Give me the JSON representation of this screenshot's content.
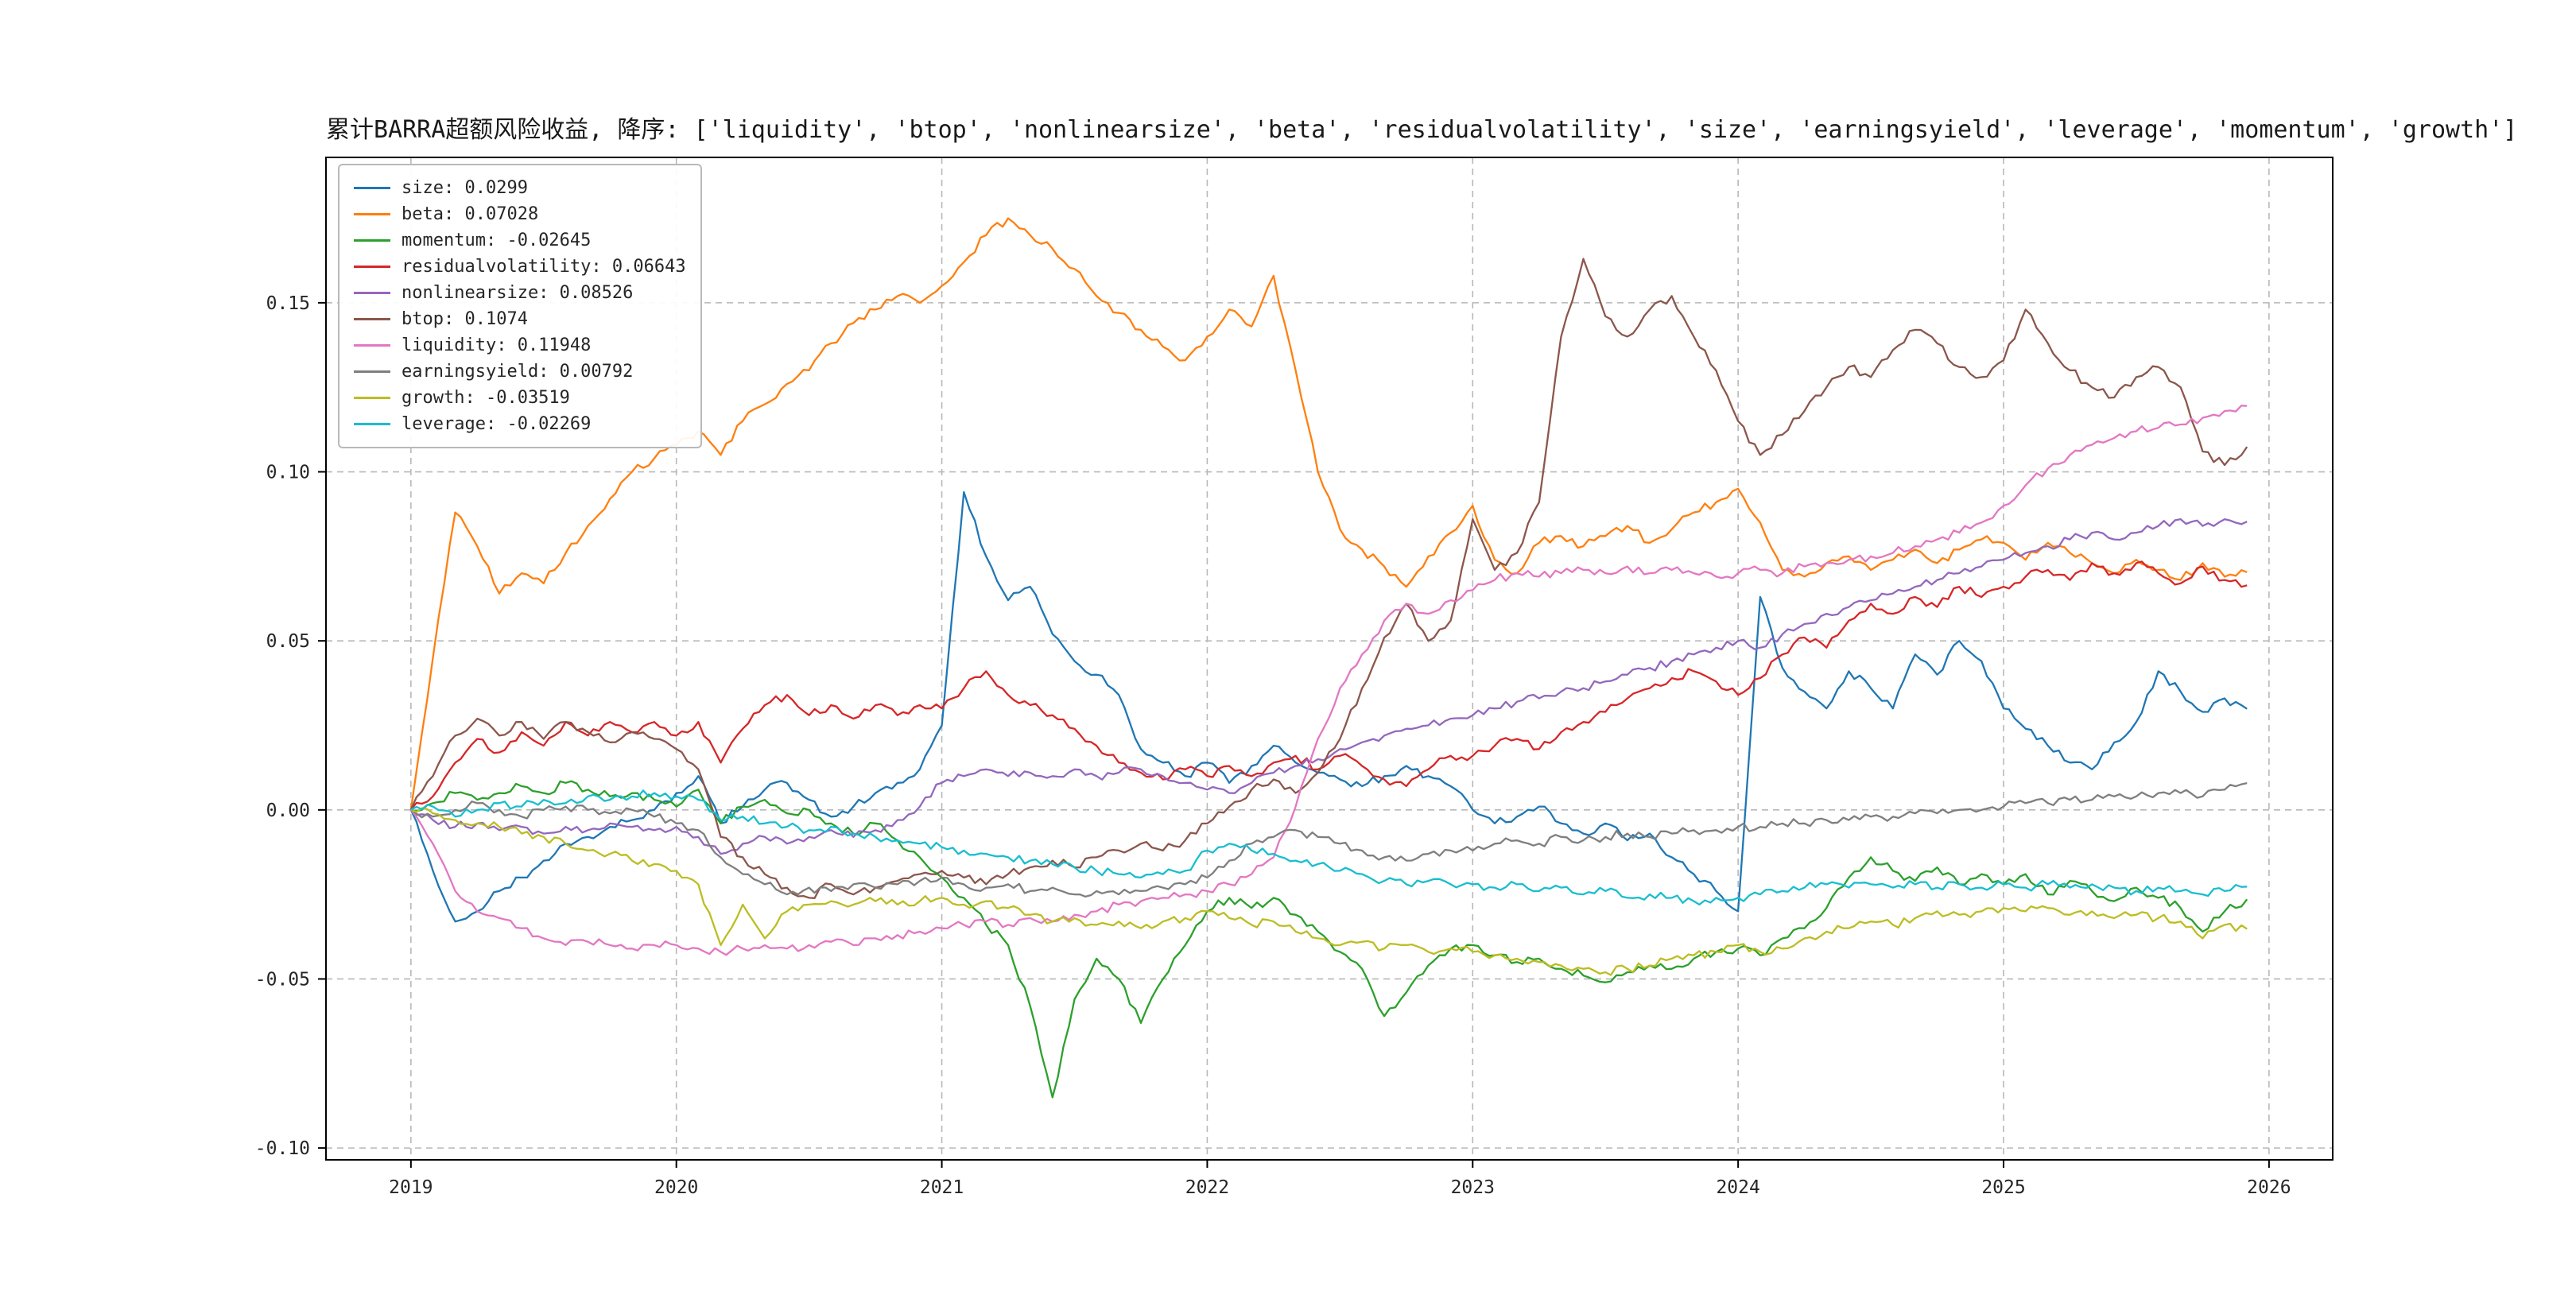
{
  "chart_data": {
    "type": "line",
    "title": "累计BARRA超额风险收益, 降序: ['liquidity', 'btop', 'nonlinearsize', 'beta', 'residualvolatility', 'size', 'earningsyield', 'leverage', 'momentum', 'growth']",
    "xlabel": "",
    "ylabel": "",
    "grid": true,
    "grid_style": "dashed",
    "legend_position": "upper left",
    "xlim": [
      2018.68,
      2026.24
    ],
    "ylim": [
      -0.1035,
      0.193
    ],
    "xticks": [
      2019,
      2020,
      2021,
      2022,
      2023,
      2024,
      2025,
      2026
    ],
    "xtick_labels": [
      "2019",
      "2020",
      "2021",
      "2022",
      "2023",
      "2024",
      "2025",
      "2026"
    ],
    "yticks": [
      -0.1,
      -0.05,
      0.0,
      0.05,
      0.1,
      0.15
    ],
    "ytick_labels": [
      "-0.10",
      "-0.05",
      "0.00",
      "0.05",
      "0.10",
      "0.15"
    ],
    "x": [
      2019.0,
      2019.083,
      2019.167,
      2019.25,
      2019.333,
      2019.417,
      2019.5,
      2019.583,
      2019.667,
      2019.75,
      2019.833,
      2019.917,
      2020.0,
      2020.083,
      2020.167,
      2020.25,
      2020.333,
      2020.417,
      2020.5,
      2020.583,
      2020.667,
      2020.75,
      2020.833,
      2020.917,
      2021.0,
      2021.083,
      2021.167,
      2021.25,
      2021.333,
      2021.417,
      2021.5,
      2021.583,
      2021.667,
      2021.75,
      2021.833,
      2021.917,
      2022.0,
      2022.083,
      2022.167,
      2022.25,
      2022.333,
      2022.417,
      2022.5,
      2022.583,
      2022.667,
      2022.75,
      2022.833,
      2022.917,
      2023.0,
      2023.083,
      2023.167,
      2023.25,
      2023.333,
      2023.417,
      2023.5,
      2023.583,
      2023.667,
      2023.75,
      2023.833,
      2023.917,
      2024.0,
      2024.083,
      2024.167,
      2024.25,
      2024.333,
      2024.417,
      2024.5,
      2024.583,
      2024.667,
      2024.75,
      2024.833,
      2024.917,
      2025.0,
      2025.083,
      2025.167,
      2025.25,
      2025.333,
      2025.417,
      2025.5,
      2025.583,
      2025.667,
      2025.75,
      2025.833,
      2025.917
    ],
    "series": [
      {
        "name": "size",
        "color": "#1f77b4",
        "label": "size: 0.0299",
        "final": 0.0299,
        "values": [
          0.0,
          -0.018,
          -0.033,
          -0.03,
          -0.024,
          -0.02,
          -0.015,
          -0.01,
          -0.008,
          -0.005,
          -0.003,
          0.0,
          0.005,
          0.01,
          -0.004,
          0.001,
          0.006,
          0.008,
          0.003,
          -0.002,
          0.001,
          0.005,
          0.008,
          0.012,
          0.025,
          0.094,
          0.075,
          0.062,
          0.066,
          0.052,
          0.044,
          0.04,
          0.034,
          0.018,
          0.014,
          0.01,
          0.014,
          0.008,
          0.013,
          0.019,
          0.014,
          0.011,
          0.009,
          0.007,
          0.01,
          0.013,
          0.01,
          0.007,
          0.0,
          -0.004,
          -0.002,
          0.001,
          -0.004,
          -0.007,
          -0.004,
          -0.009,
          -0.007,
          -0.014,
          -0.019,
          -0.024,
          -0.03,
          0.063,
          0.042,
          0.035,
          0.03,
          0.041,
          0.036,
          0.03,
          0.046,
          0.04,
          0.05,
          0.044,
          0.03,
          0.024,
          0.019,
          0.014,
          0.012,
          0.02,
          0.026,
          0.041,
          0.035,
          0.029,
          0.033,
          0.0299
        ]
      },
      {
        "name": "beta",
        "color": "#ff7f0e",
        "label": "beta: 0.07028",
        "final": 0.07028,
        "values": [
          0.0,
          0.045,
          0.088,
          0.078,
          0.064,
          0.07,
          0.067,
          0.076,
          0.084,
          0.092,
          0.1,
          0.104,
          0.108,
          0.112,
          0.105,
          0.115,
          0.12,
          0.126,
          0.13,
          0.138,
          0.144,
          0.148,
          0.152,
          0.15,
          0.155,
          0.162,
          0.17,
          0.175,
          0.17,
          0.166,
          0.16,
          0.152,
          0.147,
          0.142,
          0.137,
          0.133,
          0.14,
          0.148,
          0.143,
          0.158,
          0.13,
          0.1,
          0.083,
          0.077,
          0.072,
          0.066,
          0.075,
          0.082,
          0.09,
          0.074,
          0.07,
          0.079,
          0.081,
          0.078,
          0.081,
          0.084,
          0.079,
          0.083,
          0.088,
          0.091,
          0.095,
          0.085,
          0.071,
          0.069,
          0.073,
          0.075,
          0.071,
          0.074,
          0.077,
          0.073,
          0.077,
          0.08,
          0.079,
          0.074,
          0.079,
          0.076,
          0.073,
          0.07,
          0.074,
          0.071,
          0.068,
          0.073,
          0.069,
          0.0703
        ]
      },
      {
        "name": "momentum",
        "color": "#2ca02c",
        "label": "momentum: -0.02645",
        "final": -0.02645,
        "values": [
          0.0,
          0.002,
          0.005,
          0.003,
          0.005,
          0.007,
          0.005,
          0.008,
          0.006,
          0.004,
          0.005,
          0.003,
          0.001,
          0.006,
          -0.004,
          0.001,
          0.003,
          -0.001,
          0.0,
          -0.004,
          -0.007,
          -0.004,
          -0.009,
          -0.014,
          -0.02,
          -0.026,
          -0.034,
          -0.04,
          -0.058,
          -0.085,
          -0.056,
          -0.044,
          -0.05,
          -0.063,
          -0.05,
          -0.04,
          -0.03,
          -0.026,
          -0.029,
          -0.026,
          -0.031,
          -0.036,
          -0.042,
          -0.047,
          -0.061,
          -0.054,
          -0.046,
          -0.041,
          -0.04,
          -0.043,
          -0.045,
          -0.044,
          -0.047,
          -0.049,
          -0.051,
          -0.048,
          -0.046,
          -0.047,
          -0.044,
          -0.042,
          -0.041,
          -0.043,
          -0.038,
          -0.035,
          -0.029,
          -0.02,
          -0.014,
          -0.018,
          -0.021,
          -0.017,
          -0.022,
          -0.019,
          -0.022,
          -0.019,
          -0.025,
          -0.021,
          -0.024,
          -0.027,
          -0.023,
          -0.026,
          -0.029,
          -0.036,
          -0.03,
          -0.02645
        ]
      },
      {
        "name": "residualvolatility",
        "color": "#d62728",
        "label": "residualvolatility: 0.06643",
        "final": 0.06643,
        "values": [
          0.0,
          0.004,
          0.014,
          0.021,
          0.017,
          0.023,
          0.019,
          0.026,
          0.022,
          0.026,
          0.023,
          0.026,
          0.022,
          0.026,
          0.014,
          0.024,
          0.031,
          0.034,
          0.028,
          0.031,
          0.027,
          0.031,
          0.028,
          0.031,
          0.03,
          0.036,
          0.041,
          0.034,
          0.031,
          0.028,
          0.024,
          0.019,
          0.014,
          0.011,
          0.009,
          0.012,
          0.01,
          0.013,
          0.01,
          0.014,
          0.016,
          0.012,
          0.016,
          0.013,
          0.009,
          0.007,
          0.012,
          0.016,
          0.016,
          0.019,
          0.021,
          0.018,
          0.023,
          0.026,
          0.029,
          0.033,
          0.036,
          0.039,
          0.041,
          0.038,
          0.034,
          0.039,
          0.046,
          0.051,
          0.048,
          0.056,
          0.061,
          0.058,
          0.063,
          0.06,
          0.066,
          0.063,
          0.066,
          0.069,
          0.071,
          0.068,
          0.073,
          0.07,
          0.073,
          0.07,
          0.067,
          0.072,
          0.068,
          0.06643
        ]
      },
      {
        "name": "nonlinearsize",
        "color": "#9467bd",
        "label": "nonlinearsize: 0.08526",
        "final": 0.08526,
        "values": [
          0.0,
          -0.003,
          -0.005,
          -0.004,
          -0.006,
          -0.005,
          -0.007,
          -0.005,
          -0.006,
          -0.004,
          -0.005,
          -0.006,
          -0.005,
          -0.008,
          -0.013,
          -0.01,
          -0.008,
          -0.01,
          -0.008,
          -0.006,
          -0.008,
          -0.006,
          -0.003,
          0.001,
          0.008,
          0.01,
          0.012,
          0.01,
          0.011,
          0.01,
          0.012,
          0.01,
          0.011,
          0.012,
          0.01,
          0.008,
          0.006,
          0.005,
          0.008,
          0.011,
          0.013,
          0.015,
          0.018,
          0.02,
          0.022,
          0.024,
          0.025,
          0.027,
          0.028,
          0.03,
          0.032,
          0.033,
          0.035,
          0.036,
          0.038,
          0.04,
          0.042,
          0.044,
          0.046,
          0.048,
          0.05,
          0.048,
          0.052,
          0.055,
          0.058,
          0.06,
          0.062,
          0.064,
          0.066,
          0.068,
          0.07,
          0.072,
          0.074,
          0.076,
          0.078,
          0.08,
          0.082,
          0.08,
          0.082,
          0.084,
          0.086,
          0.084,
          0.086,
          0.08526
        ]
      },
      {
        "name": "btop",
        "color": "#8c564b",
        "label": "btop: 0.1074",
        "final": 0.1074,
        "values": [
          0.0,
          0.01,
          0.022,
          0.027,
          0.022,
          0.026,
          0.021,
          0.026,
          0.023,
          0.02,
          0.023,
          0.021,
          0.018,
          0.012,
          -0.008,
          -0.014,
          -0.019,
          -0.023,
          -0.026,
          -0.022,
          -0.025,
          -0.023,
          -0.021,
          -0.019,
          -0.018,
          -0.02,
          -0.022,
          -0.019,
          -0.017,
          -0.015,
          -0.017,
          -0.014,
          -0.012,
          -0.01,
          -0.012,
          -0.009,
          -0.004,
          0.001,
          0.006,
          0.009,
          0.005,
          0.011,
          0.021,
          0.036,
          0.051,
          0.061,
          0.05,
          0.056,
          0.086,
          0.071,
          0.076,
          0.091,
          0.14,
          0.163,
          0.146,
          0.14,
          0.148,
          0.152,
          0.14,
          0.13,
          0.115,
          0.105,
          0.111,
          0.118,
          0.125,
          0.131,
          0.128,
          0.136,
          0.142,
          0.138,
          0.131,
          0.128,
          0.133,
          0.148,
          0.138,
          0.13,
          0.125,
          0.122,
          0.128,
          0.131,
          0.125,
          0.106,
          0.102,
          0.1074
        ]
      },
      {
        "name": "liquidity",
        "color": "#e377c2",
        "label": "liquidity: 0.11948",
        "final": 0.11948,
        "values": [
          0.0,
          -0.01,
          -0.024,
          -0.03,
          -0.032,
          -0.035,
          -0.038,
          -0.04,
          -0.039,
          -0.04,
          -0.041,
          -0.04,
          -0.04,
          -0.041,
          -0.042,
          -0.041,
          -0.04,
          -0.041,
          -0.04,
          -0.039,
          -0.04,
          -0.038,
          -0.037,
          -0.036,
          -0.035,
          -0.034,
          -0.033,
          -0.034,
          -0.032,
          -0.033,
          -0.031,
          -0.03,
          -0.028,
          -0.027,
          -0.026,
          -0.025,
          -0.024,
          -0.022,
          -0.019,
          -0.014,
          0.001,
          0.021,
          0.036,
          0.046,
          0.056,
          0.061,
          0.058,
          0.062,
          0.065,
          0.068,
          0.07,
          0.069,
          0.07,
          0.071,
          0.07,
          0.072,
          0.07,
          0.071,
          0.07,
          0.069,
          0.07,
          0.071,
          0.07,
          0.072,
          0.073,
          0.074,
          0.075,
          0.076,
          0.078,
          0.08,
          0.082,
          0.085,
          0.09,
          0.096,
          0.101,
          0.105,
          0.108,
          0.11,
          0.112,
          0.113,
          0.114,
          0.116,
          0.118,
          0.11948
        ]
      },
      {
        "name": "earningsyield",
        "color": "#7f7f7f",
        "label": "earningsyield: 0.00792",
        "final": 0.00792,
        "values": [
          0.0,
          -0.002,
          0.0,
          0.002,
          0.0,
          -0.002,
          0.0,
          0.001,
          0.0,
          -0.001,
          0.0,
          -0.002,
          -0.004,
          -0.006,
          -0.014,
          -0.019,
          -0.022,
          -0.025,
          -0.023,
          -0.024,
          -0.022,
          -0.023,
          -0.022,
          -0.021,
          -0.02,
          -0.022,
          -0.023,
          -0.022,
          -0.024,
          -0.023,
          -0.025,
          -0.024,
          -0.025,
          -0.024,
          -0.023,
          -0.022,
          -0.02,
          -0.015,
          -0.01,
          -0.008,
          -0.006,
          -0.008,
          -0.01,
          -0.012,
          -0.014,
          -0.015,
          -0.013,
          -0.012,
          -0.012,
          -0.01,
          -0.009,
          -0.01,
          -0.008,
          -0.009,
          -0.008,
          -0.007,
          -0.008,
          -0.007,
          -0.006,
          -0.006,
          -0.005,
          -0.005,
          -0.004,
          -0.004,
          -0.003,
          -0.003,
          -0.002,
          -0.002,
          -0.001,
          -0.001,
          0.0,
          0.0,
          0.001,
          0.002,
          0.002,
          0.003,
          0.003,
          0.004,
          0.004,
          0.005,
          0.005,
          0.004,
          0.006,
          0.00792
        ]
      },
      {
        "name": "growth",
        "color": "#bcbd22",
        "label": "growth: -0.03519",
        "final": -0.03519,
        "values": [
          0.0,
          -0.001,
          -0.003,
          -0.004,
          -0.005,
          -0.007,
          -0.008,
          -0.01,
          -0.012,
          -0.013,
          -0.015,
          -0.016,
          -0.018,
          -0.022,
          -0.04,
          -0.028,
          -0.038,
          -0.03,
          -0.028,
          -0.027,
          -0.028,
          -0.027,
          -0.028,
          -0.027,
          -0.026,
          -0.028,
          -0.027,
          -0.029,
          -0.031,
          -0.033,
          -0.032,
          -0.034,
          -0.033,
          -0.035,
          -0.033,
          -0.032,
          -0.03,
          -0.032,
          -0.034,
          -0.033,
          -0.036,
          -0.038,
          -0.04,
          -0.039,
          -0.041,
          -0.04,
          -0.042,
          -0.041,
          -0.042,
          -0.043,
          -0.044,
          -0.045,
          -0.046,
          -0.047,
          -0.048,
          -0.047,
          -0.046,
          -0.044,
          -0.043,
          -0.042,
          -0.04,
          -0.042,
          -0.041,
          -0.038,
          -0.036,
          -0.035,
          -0.033,
          -0.034,
          -0.032,
          -0.03,
          -0.031,
          -0.03,
          -0.029,
          -0.03,
          -0.029,
          -0.031,
          -0.03,
          -0.032,
          -0.031,
          -0.032,
          -0.033,
          -0.038,
          -0.034,
          -0.03519
        ]
      },
      {
        "name": "leverage",
        "color": "#17becf",
        "label": "leverage: -0.02269",
        "final": -0.02269,
        "values": [
          0.0,
          0.001,
          -0.002,
          0.0,
          0.002,
          0.001,
          0.003,
          0.002,
          0.004,
          0.003,
          0.004,
          0.005,
          0.004,
          0.003,
          -0.003,
          -0.002,
          -0.004,
          -0.005,
          -0.006,
          -0.005,
          -0.007,
          -0.008,
          -0.009,
          -0.01,
          -0.011,
          -0.012,
          -0.013,
          -0.014,
          -0.015,
          -0.016,
          -0.017,
          -0.018,
          -0.019,
          -0.02,
          -0.019,
          -0.018,
          -0.012,
          -0.01,
          -0.012,
          -0.013,
          -0.015,
          -0.016,
          -0.018,
          -0.019,
          -0.021,
          -0.022,
          -0.021,
          -0.022,
          -0.022,
          -0.023,
          -0.022,
          -0.024,
          -0.023,
          -0.025,
          -0.024,
          -0.026,
          -0.025,
          -0.026,
          -0.027,
          -0.026,
          -0.026,
          -0.025,
          -0.024,
          -0.023,
          -0.022,
          -0.023,
          -0.022,
          -0.023,
          -0.022,
          -0.023,
          -0.022,
          -0.023,
          -0.022,
          -0.023,
          -0.022,
          -0.023,
          -0.022,
          -0.023,
          -0.024,
          -0.023,
          -0.024,
          -0.025,
          -0.024,
          -0.02269
        ]
      }
    ],
    "colors": {
      "grid": "#b8b8b8",
      "spine": "#000000",
      "tick_label": "#262626",
      "background": "#ffffff"
    }
  }
}
